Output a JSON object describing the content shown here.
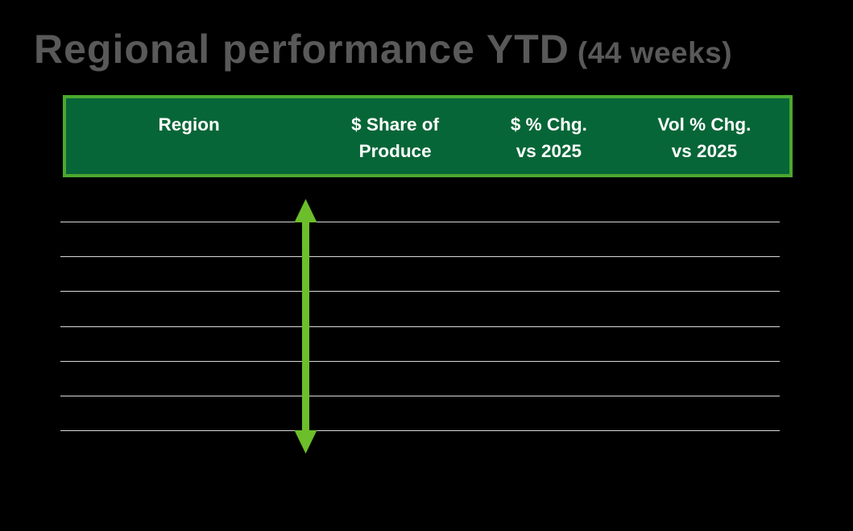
{
  "slide": {
    "title": {
      "main": "Regional performance YTD",
      "suffix": "(44 weeks)"
    },
    "table_header": {
      "columns": [
        {
          "line1": "Region",
          "line2": ""
        },
        {
          "line1": "$ Share of",
          "line2": "Produce"
        },
        {
          "line1": "$ % Chg.",
          "line2": "vs 2025"
        },
        {
          "line1": "Vol % Chg.",
          "line2": "vs 2025"
        }
      ]
    },
    "table_body": {
      "empty_row_line_count": 7
    },
    "shapes": {
      "arrow": "vertical-double-arrow"
    },
    "colors": {
      "background": "#000000",
      "title_text": "#595959",
      "header_fill": "#076637",
      "header_border": "#4CA830",
      "header_text": "#FFFFFF",
      "row_line": "#D9D9D9",
      "arrow": "#6CBE2B"
    }
  }
}
